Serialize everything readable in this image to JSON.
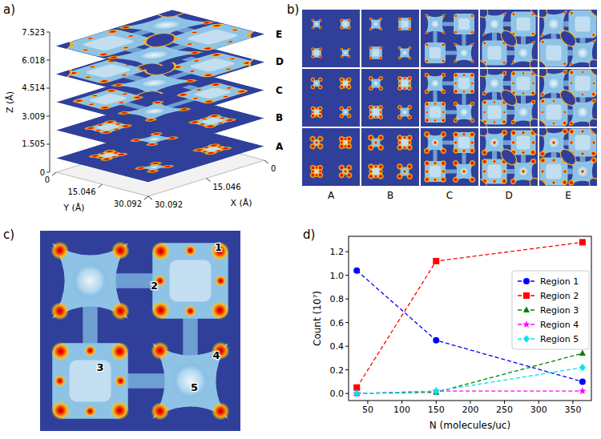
{
  "panel_labels": [
    "a)",
    "b)",
    "c)",
    "d)"
  ],
  "panel_a": {
    "z_label": "Z (Å)",
    "y_label": "Y (Å)",
    "x_label": "X (Å)",
    "zlim": [
      0,
      7.523
    ],
    "zticks": [
      0,
      1.505,
      3.009,
      4.514,
      6.018,
      7.523
    ],
    "xlim": [
      0,
      30.092
    ],
    "xticks": [
      30.092,
      15.046,
      0
    ],
    "ylim": [
      0,
      30.092
    ],
    "yticks": [
      0,
      15.046,
      30.092
    ],
    "layers": [
      {
        "label": "A",
        "z": 0.75
      },
      {
        "label": "B",
        "z": 2.26
      },
      {
        "label": "C",
        "z": 3.76
      },
      {
        "label": "D",
        "z": 5.27
      },
      {
        "label": "E",
        "z": 6.77
      }
    ]
  },
  "panel_b": {
    "columns": [
      "A",
      "B",
      "C",
      "D",
      "E"
    ]
  },
  "panel_c": {
    "regions": [
      "1",
      "2",
      "3",
      "4",
      "5"
    ]
  },
  "chart_data": {
    "type": "line",
    "x_label": "N (molecules/uc)",
    "y_label": "Count (10⁷)",
    "x": [
      34,
      150,
      364
    ],
    "xlim": [
      22,
      377
    ],
    "xticks": [
      50,
      100,
      150,
      200,
      250,
      300,
      350
    ],
    "ylim": [
      -0.06,
      1.33
    ],
    "yticks": [
      {
        "value": 0,
        "label": "0.0"
      },
      {
        "value": 0.2,
        "label": "0.2"
      },
      {
        "value": 0.4,
        "label": "0.4"
      },
      {
        "value": 0.6,
        "label": "0.6"
      },
      {
        "value": 0.8,
        "label": "0.8"
      },
      {
        "value": 1.0,
        "label": "1.0"
      },
      {
        "value": 1.2,
        "label": "1.2"
      }
    ],
    "grid": false,
    "legend": "right",
    "line_style": "dashed",
    "series": [
      {
        "name": "Region 1",
        "color": "#0000ff",
        "marker": "circle",
        "values": [
          1.04,
          0.45,
          0.1
        ]
      },
      {
        "name": "Region 2",
        "color": "#ff0000",
        "marker": "square",
        "values": [
          0.05,
          1.12,
          1.28
        ]
      },
      {
        "name": "Region 3",
        "color": "#008000",
        "marker": "triangle",
        "values": [
          0.0,
          0.01,
          0.34
        ]
      },
      {
        "name": "Region 4",
        "color": "#ff00ff",
        "marker": "star",
        "values": [
          0.0,
          0.02,
          0.02
        ]
      },
      {
        "name": "Region 5",
        "color": "#00e5ee",
        "marker": "diamond",
        "values": [
          0.0,
          0.02,
          0.22
        ]
      }
    ]
  }
}
